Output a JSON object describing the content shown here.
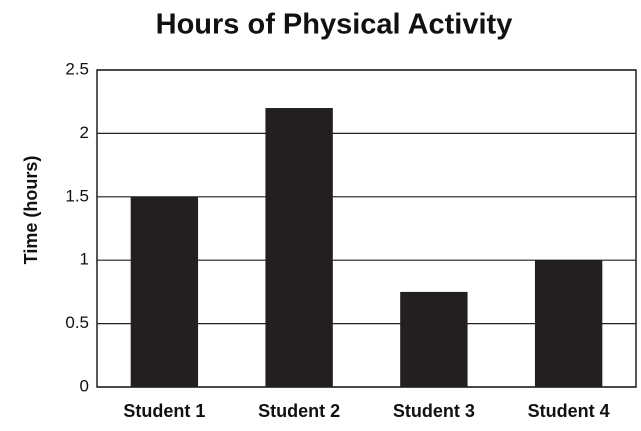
{
  "chart_data": {
    "type": "bar",
    "title": "Hours of Physical Activity",
    "y_label": "Time (hours)",
    "categories": [
      "Student 1",
      "Student 2",
      "Student 3",
      "Student 4"
    ],
    "values": [
      1.5,
      2.2,
      0.75,
      1
    ],
    "color": "#231f20",
    "ylim": [
      0,
      2.5
    ],
    "yticks": [
      0,
      0.5,
      1,
      1.5,
      2,
      2.5
    ],
    "grid": true
  }
}
